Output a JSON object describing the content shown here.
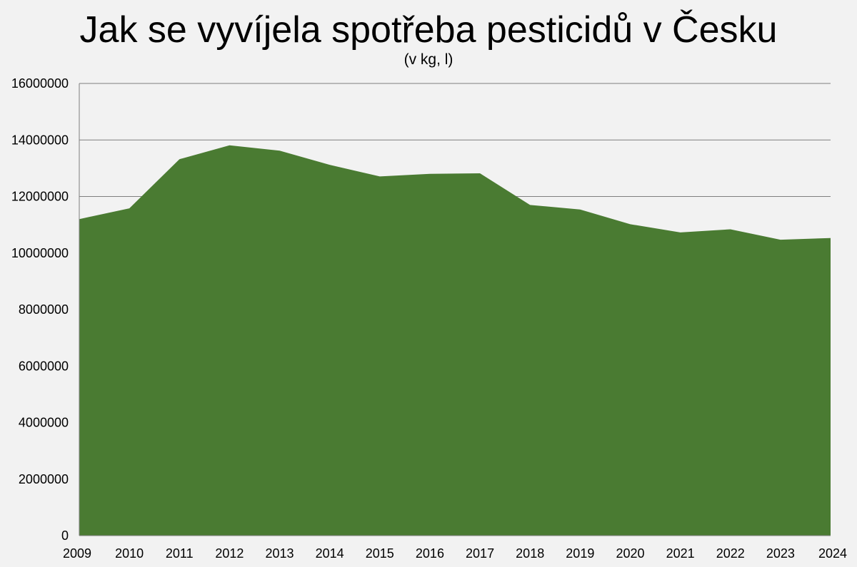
{
  "chart_data": {
    "type": "area",
    "title": "Jak se vyvíjela spotřeba pesticidů v Česku",
    "subtitle": "(v kg, l)",
    "xlabel": "",
    "ylabel": "",
    "x": [
      "2009",
      "2010",
      "2011",
      "2012",
      "2013",
      "2014",
      "2015",
      "2016",
      "2017",
      "2018",
      "2019",
      "2020",
      "2021",
      "2022",
      "2023",
      "2024"
    ],
    "series": [
      {
        "values": [
          11200000,
          11580000,
          13320000,
          13810000,
          13620000,
          13120000,
          12710000,
          12800000,
          12820000,
          11700000,
          11540000,
          11020000,
          10730000,
          10840000,
          10470000,
          10530000
        ],
        "color": "#4a7b32"
      }
    ],
    "yticks": [
      "0",
      "2000000",
      "4000000",
      "6000000",
      "8000000",
      "10000000",
      "12000000",
      "14000000",
      "16000000"
    ],
    "ylim": [
      0,
      16000000
    ],
    "grid": true,
    "legend": "none"
  }
}
